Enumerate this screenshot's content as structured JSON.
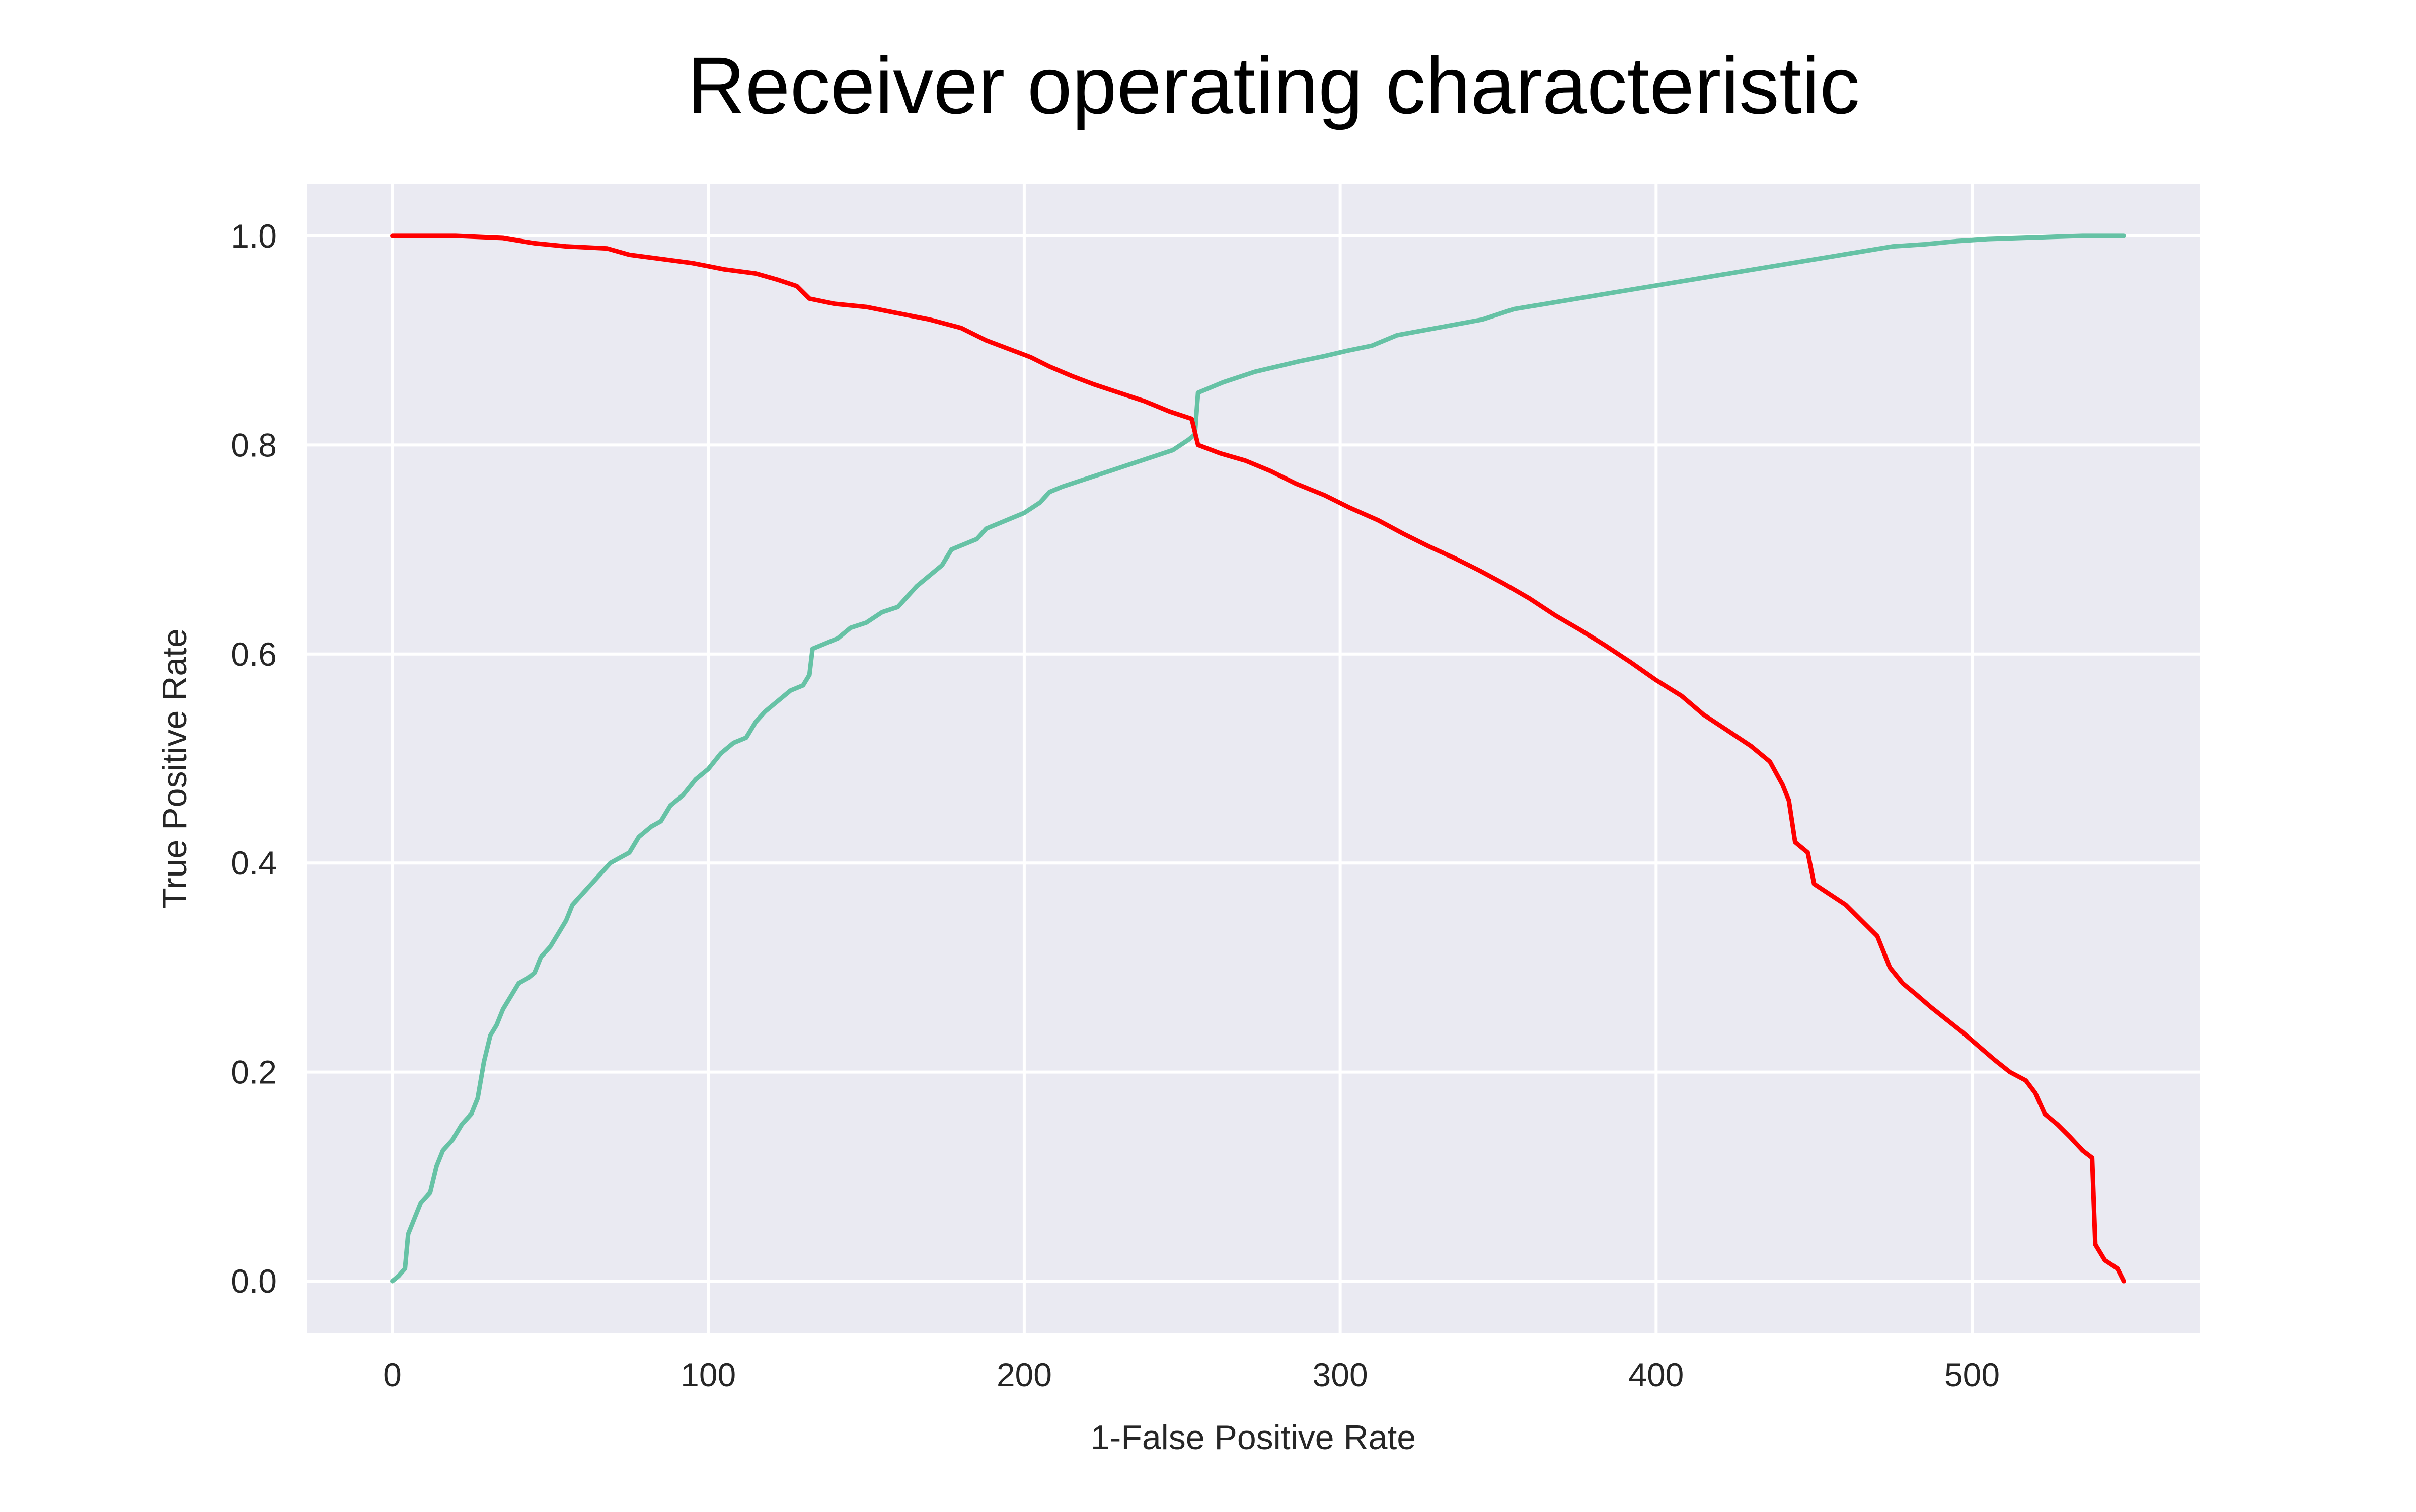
{
  "chart_data": {
    "type": "line",
    "title": "Receiver operating characteristic",
    "xlabel": "1-False Positive Rate",
    "ylabel": "True Positive Rate",
    "xlim": [
      -27,
      572
    ],
    "ylim": [
      -0.05,
      1.05
    ],
    "x_ticks": [
      0,
      100,
      200,
      300,
      400,
      500
    ],
    "y_ticks": [
      0.0,
      0.2,
      0.4,
      0.6,
      0.8,
      1.0
    ],
    "x_tick_labels": [
      "0",
      "100",
      "200",
      "300",
      "400",
      "500"
    ],
    "y_tick_labels": [
      "0.0",
      "0.2",
      "0.4",
      "0.6",
      "0.8",
      "1.0"
    ],
    "grid": true,
    "background_color": "#eaeaf2",
    "grid_color": "#ffffff",
    "series": [
      {
        "color": "#66c2a5",
        "points": [
          [
            0,
            0.0
          ],
          [
            2,
            0.005
          ],
          [
            4,
            0.012
          ],
          [
            5,
            0.045
          ],
          [
            7,
            0.06
          ],
          [
            9,
            0.075
          ],
          [
            12,
            0.085
          ],
          [
            14,
            0.11
          ],
          [
            16,
            0.125
          ],
          [
            19,
            0.135
          ],
          [
            22,
            0.15
          ],
          [
            25,
            0.16
          ],
          [
            27,
            0.175
          ],
          [
            29,
            0.21
          ],
          [
            31,
            0.235
          ],
          [
            33,
            0.245
          ],
          [
            35,
            0.26
          ],
          [
            38,
            0.275
          ],
          [
            40,
            0.285
          ],
          [
            43,
            0.29
          ],
          [
            45,
            0.295
          ],
          [
            47,
            0.31
          ],
          [
            50,
            0.32
          ],
          [
            53,
            0.335
          ],
          [
            55,
            0.345
          ],
          [
            57,
            0.36
          ],
          [
            60,
            0.37
          ],
          [
            63,
            0.38
          ],
          [
            66,
            0.39
          ],
          [
            69,
            0.4
          ],
          [
            72,
            0.405
          ],
          [
            75,
            0.41
          ],
          [
            78,
            0.425
          ],
          [
            82,
            0.435
          ],
          [
            85,
            0.44
          ],
          [
            88,
            0.455
          ],
          [
            92,
            0.465
          ],
          [
            96,
            0.48
          ],
          [
            100,
            0.49
          ],
          [
            104,
            0.505
          ],
          [
            108,
            0.515
          ],
          [
            112,
            0.52
          ],
          [
            115,
            0.535
          ],
          [
            118,
            0.545
          ],
          [
            122,
            0.555
          ],
          [
            126,
            0.565
          ],
          [
            130,
            0.57
          ],
          [
            132,
            0.58
          ],
          [
            133,
            0.605
          ],
          [
            137,
            0.61
          ],
          [
            141,
            0.615
          ],
          [
            145,
            0.625
          ],
          [
            150,
            0.63
          ],
          [
            155,
            0.64
          ],
          [
            160,
            0.645
          ],
          [
            163,
            0.655
          ],
          [
            166,
            0.665
          ],
          [
            170,
            0.675
          ],
          [
            174,
            0.685
          ],
          [
            177,
            0.7
          ],
          [
            181,
            0.705
          ],
          [
            185,
            0.71
          ],
          [
            188,
            0.72
          ],
          [
            192,
            0.725
          ],
          [
            196,
            0.73
          ],
          [
            200,
            0.735
          ],
          [
            205,
            0.745
          ],
          [
            208,
            0.755
          ],
          [
            212,
            0.76
          ],
          [
            217,
            0.765
          ],
          [
            222,
            0.77
          ],
          [
            227,
            0.775
          ],
          [
            232,
            0.78
          ],
          [
            237,
            0.785
          ],
          [
            242,
            0.79
          ],
          [
            247,
            0.795
          ],
          [
            252,
            0.805
          ],
          [
            254,
            0.81
          ],
          [
            255,
            0.85
          ],
          [
            259,
            0.855
          ],
          [
            263,
            0.86
          ],
          [
            268,
            0.865
          ],
          [
            273,
            0.87
          ],
          [
            280,
            0.875
          ],
          [
            287,
            0.88
          ],
          [
            295,
            0.885
          ],
          [
            302,
            0.89
          ],
          [
            310,
            0.895
          ],
          [
            318,
            0.905
          ],
          [
            327,
            0.91
          ],
          [
            336,
            0.915
          ],
          [
            345,
            0.92
          ],
          [
            355,
            0.93
          ],
          [
            365,
            0.935
          ],
          [
            375,
            0.94
          ],
          [
            385,
            0.945
          ],
          [
            395,
            0.95
          ],
          [
            405,
            0.955
          ],
          [
            415,
            0.96
          ],
          [
            425,
            0.965
          ],
          [
            435,
            0.97
          ],
          [
            445,
            0.975
          ],
          [
            455,
            0.98
          ],
          [
            465,
            0.985
          ],
          [
            475,
            0.99
          ],
          [
            485,
            0.992
          ],
          [
            495,
            0.995
          ],
          [
            505,
            0.997
          ],
          [
            515,
            0.998
          ],
          [
            525,
            0.999
          ],
          [
            535,
            1.0
          ],
          [
            548,
            1.0
          ]
        ]
      },
      {
        "color": "#ff0000",
        "points": [
          [
            0,
            1.0
          ],
          [
            20,
            1.0
          ],
          [
            35,
            0.998
          ],
          [
            45,
            0.993
          ],
          [
            55,
            0.99
          ],
          [
            68,
            0.988
          ],
          [
            75,
            0.982
          ],
          [
            85,
            0.978
          ],
          [
            95,
            0.974
          ],
          [
            105,
            0.968
          ],
          [
            115,
            0.964
          ],
          [
            122,
            0.958
          ],
          [
            128,
            0.952
          ],
          [
            132,
            0.94
          ],
          [
            140,
            0.935
          ],
          [
            150,
            0.932
          ],
          [
            160,
            0.926
          ],
          [
            170,
            0.92
          ],
          [
            180,
            0.912
          ],
          [
            188,
            0.9
          ],
          [
            195,
            0.892
          ],
          [
            202,
            0.884
          ],
          [
            208,
            0.875
          ],
          [
            215,
            0.866
          ],
          [
            222,
            0.858
          ],
          [
            230,
            0.85
          ],
          [
            238,
            0.842
          ],
          [
            246,
            0.832
          ],
          [
            253,
            0.825
          ],
          [
            255,
            0.8
          ],
          [
            262,
            0.792
          ],
          [
            270,
            0.785
          ],
          [
            278,
            0.775
          ],
          [
            286,
            0.763
          ],
          [
            295,
            0.752
          ],
          [
            303,
            0.74
          ],
          [
            312,
            0.728
          ],
          [
            320,
            0.715
          ],
          [
            328,
            0.703
          ],
          [
            336,
            0.692
          ],
          [
            344,
            0.68
          ],
          [
            352,
            0.667
          ],
          [
            360,
            0.653
          ],
          [
            368,
            0.637
          ],
          [
            376,
            0.623
          ],
          [
            384,
            0.608
          ],
          [
            392,
            0.592
          ],
          [
            400,
            0.575
          ],
          [
            408,
            0.56
          ],
          [
            415,
            0.542
          ],
          [
            422,
            0.528
          ],
          [
            430,
            0.512
          ],
          [
            436,
            0.497
          ],
          [
            440,
            0.475
          ],
          [
            442,
            0.46
          ],
          [
            444,
            0.42
          ],
          [
            448,
            0.41
          ],
          [
            450,
            0.38
          ],
          [
            455,
            0.37
          ],
          [
            460,
            0.36
          ],
          [
            465,
            0.345
          ],
          [
            470,
            0.33
          ],
          [
            474,
            0.3
          ],
          [
            478,
            0.285
          ],
          [
            482,
            0.275
          ],
          [
            487,
            0.262
          ],
          [
            492,
            0.25
          ],
          [
            497,
            0.238
          ],
          [
            502,
            0.225
          ],
          [
            507,
            0.212
          ],
          [
            512,
            0.2
          ],
          [
            517,
            0.192
          ],
          [
            520,
            0.18
          ],
          [
            523,
            0.16
          ],
          [
            527,
            0.15
          ],
          [
            531,
            0.138
          ],
          [
            535,
            0.125
          ],
          [
            538,
            0.118
          ],
          [
            539,
            0.035
          ],
          [
            542,
            0.02
          ],
          [
            546,
            0.012
          ],
          [
            548,
            0.0
          ]
        ]
      }
    ]
  }
}
